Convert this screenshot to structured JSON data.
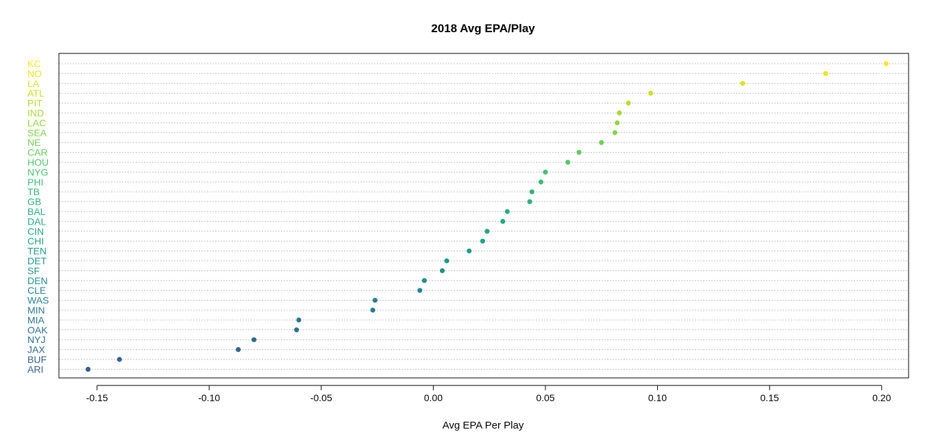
{
  "chart_data": {
    "type": "scatter",
    "title": "2018 Avg EPA/Play",
    "xlabel": "Avg EPA Per Play",
    "ylabel": "",
    "xlim": [
      -0.167,
      0.212
    ],
    "x_ticks": [
      -0.15,
      -0.1,
      -0.05,
      0.0,
      0.05,
      0.1,
      0.15,
      0.2
    ],
    "x_tick_labels": [
      "-0.15",
      "-0.10",
      "-0.05",
      "0.00",
      "0.05",
      "0.10",
      "0.15",
      "0.20"
    ],
    "grid": "horizontal dotted",
    "colormap": "viridis",
    "categories": [
      "KC",
      "NO",
      "LA",
      "ATL",
      "PIT",
      "IND",
      "LAC",
      "SEA",
      "NE",
      "CAR",
      "HOU",
      "NYG",
      "PHI",
      "TB",
      "GB",
      "BAL",
      "DAL",
      "CIN",
      "CHI",
      "TEN",
      "DET",
      "SF",
      "DEN",
      "CLE",
      "WAS",
      "MIN",
      "MIA",
      "OAK",
      "NYJ",
      "JAX",
      "BUF",
      "ARI"
    ],
    "values": [
      0.202,
      0.175,
      0.138,
      0.097,
      0.087,
      0.083,
      0.082,
      0.081,
      0.075,
      0.065,
      0.06,
      0.05,
      0.048,
      0.044,
      0.043,
      0.033,
      0.031,
      0.024,
      0.022,
      0.016,
      0.006,
      0.004,
      -0.004,
      -0.006,
      -0.026,
      -0.027,
      -0.06,
      -0.061,
      -0.08,
      -0.087,
      -0.14,
      -0.154
    ],
    "colors": [
      "#FDE725",
      "#EEE51C",
      "#DDE318",
      "#CBE11E",
      "#B8DE29",
      "#A5DB36",
      "#93D741",
      "#82D34D",
      "#71CF57",
      "#62CB5F",
      "#55C667",
      "#48C16E",
      "#3DBC74",
      "#34B679",
      "#2DB17D",
      "#28AE80",
      "#24AA83",
      "#21A585",
      "#1FA187",
      "#1E9C89",
      "#1F978B",
      "#20928C",
      "#228D8D",
      "#24878E",
      "#26828E",
      "#287C8E",
      "#2A778E",
      "#2C718E",
      "#2E6C8E",
      "#30678D",
      "#32628D",
      "#355D8C"
    ]
  }
}
